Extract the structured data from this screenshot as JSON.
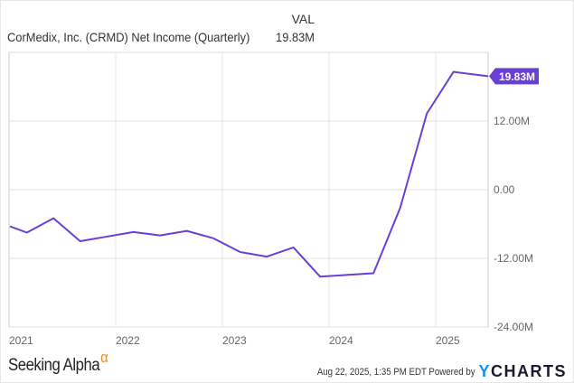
{
  "header": {
    "title": "CorMedix, Inc. (CRMD) Net Income (Quarterly)",
    "val_label": "VAL",
    "val_value": "19.83M"
  },
  "chart_data": {
    "type": "line",
    "title": "CorMedix, Inc. (CRMD) Net Income (Quarterly)",
    "xlabel": "",
    "ylabel": "",
    "ylim": [
      -24,
      24
    ],
    "grid": true,
    "legend_position": "top-right",
    "x_tick_labels": [
      "2021",
      "2022",
      "2023",
      "2024",
      "2025"
    ],
    "y_tick_labels": [
      "12.00M",
      "0.00",
      "-12.00M",
      "-24.00M"
    ],
    "y_ticks": [
      12,
      0,
      -12,
      -24
    ],
    "series": [
      {
        "name": "CorMedix, Inc. (CRMD) Net Income (Quarterly)",
        "color": "#6a3fd6",
        "last_value_label": "19.83M",
        "x": [
          "2020-12",
          "2021-03",
          "2021-06",
          "2021-09",
          "2021-12",
          "2022-03",
          "2022-06",
          "2022-09",
          "2022-12",
          "2023-03",
          "2023-06",
          "2023-09",
          "2023-12",
          "2024-06",
          "2024-09",
          "2024-12",
          "2025-03",
          "2025-06"
        ],
        "values": [
          -6.4,
          -7.5,
          -5.0,
          -9.0,
          -8.2,
          -7.4,
          -8.0,
          -7.2,
          -8.5,
          -10.9,
          -11.7,
          -10.1,
          -15.2,
          -14.6,
          -3.2,
          13.3,
          20.6,
          19.83
        ]
      }
    ]
  },
  "footer": {
    "brand_left": "Seeking Alpha",
    "brand_left_mark": "α",
    "timestamp": "Aug 22, 2025, 1:35 PM EDT",
    "powered_by": "Powered by",
    "brand_right_y": "Y",
    "brand_right_rest": "CHARTS"
  },
  "colors": {
    "line": "#6a3fd6",
    "label_bg": "#6a3fd6",
    "grid": "#e8e8e8",
    "axis_text": "#666666",
    "alpha_orange": "#f08a24",
    "ycharts_blue": "#1a8fe3"
  }
}
